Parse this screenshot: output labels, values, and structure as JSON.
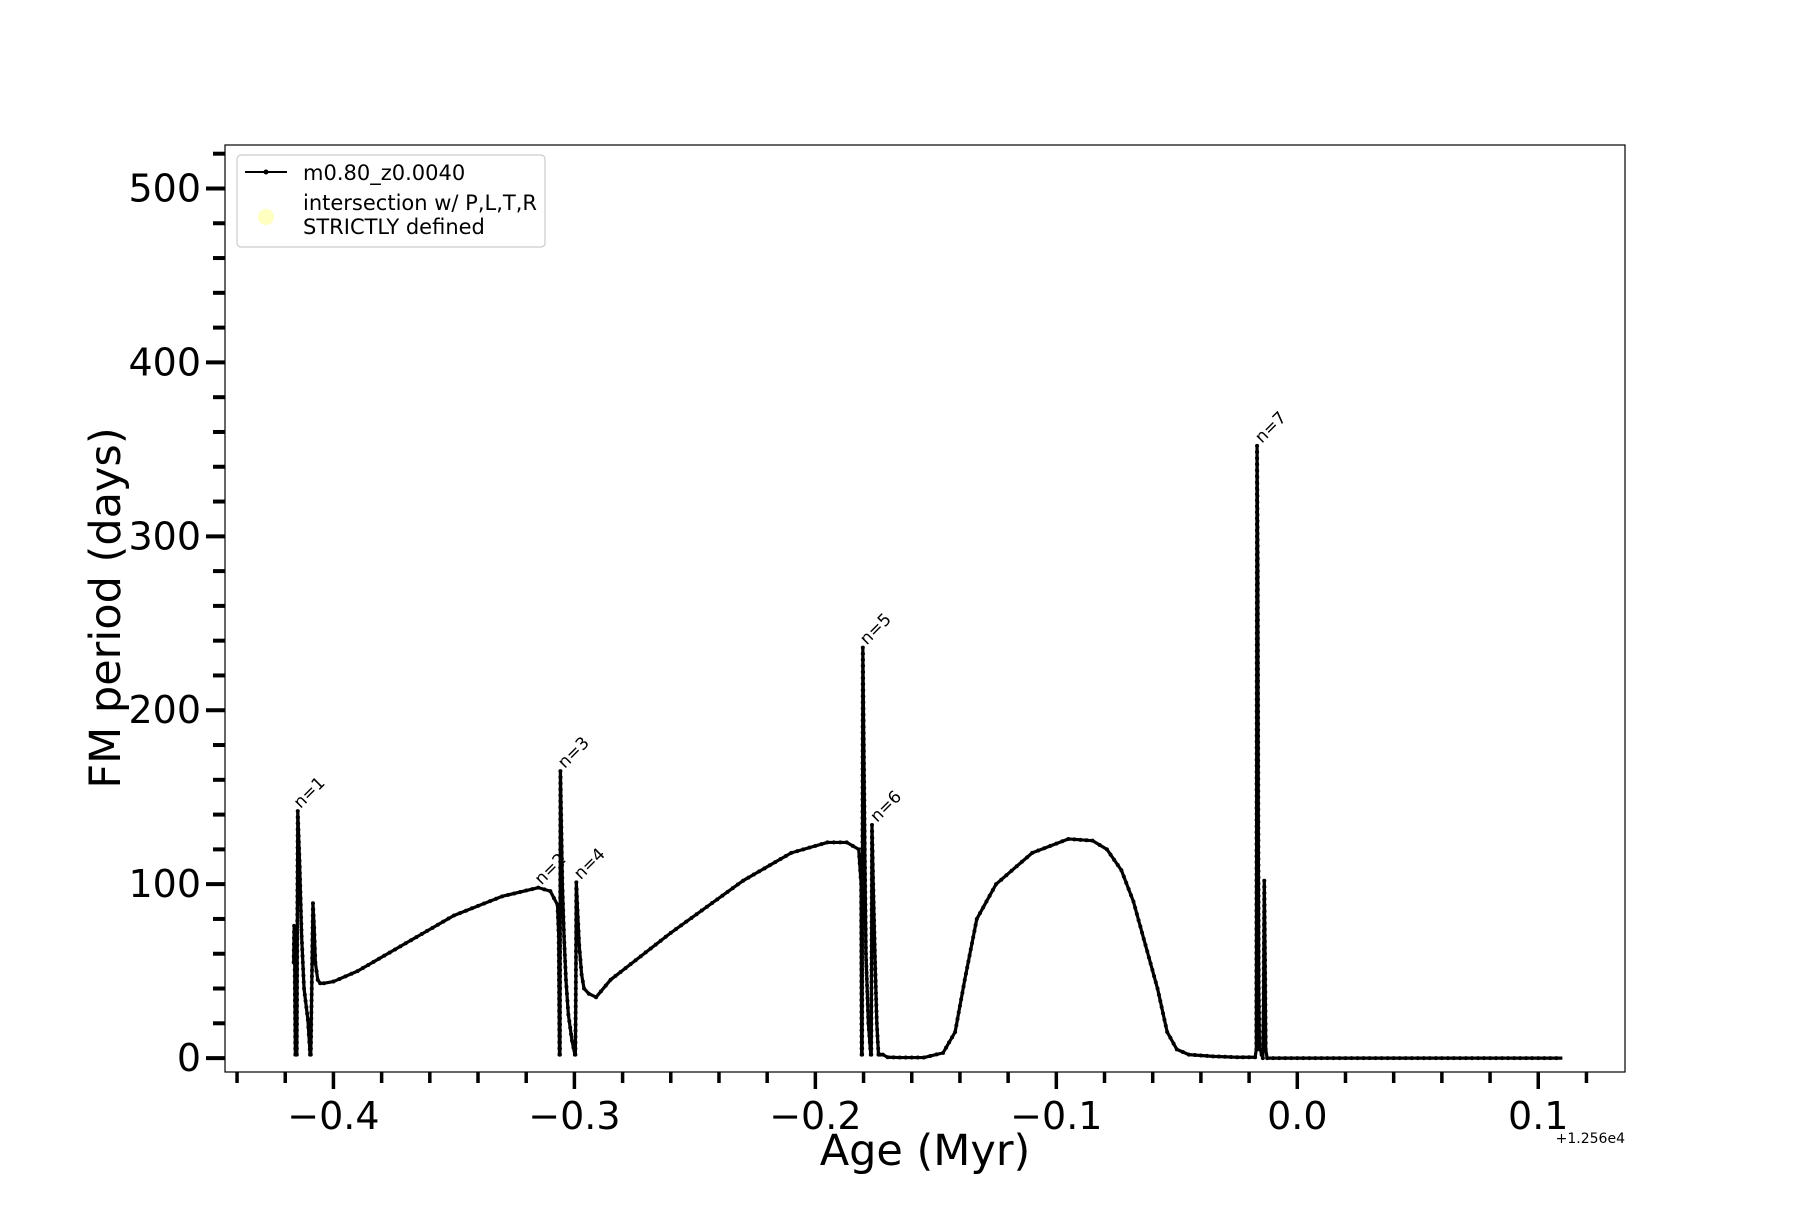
{
  "chart_data": {
    "type": "line",
    "xlabel": "Age (Myr)",
    "ylabel": "FM period (days)",
    "x_offset_label": "+1.256e4",
    "xlim": [
      -0.445,
      0.136
    ],
    "ylim": [
      -8,
      525
    ],
    "x_ticks": [
      -0.4,
      -0.3,
      -0.2,
      -0.1,
      0.0,
      0.1
    ],
    "x_tick_labels": [
      "−0.4",
      "−0.3",
      "−0.2",
      "−0.1",
      "0.0",
      "0.1"
    ],
    "y_ticks": [
      0,
      100,
      200,
      300,
      400,
      500
    ],
    "y_tick_labels": [
      "0",
      "100",
      "200",
      "300",
      "400",
      "500"
    ],
    "grid": false,
    "legend": {
      "placement": "top-left",
      "entries": [
        {
          "label": "m0.80_z0.0040",
          "marker": "line-with-dots",
          "color": "#000000"
        },
        {
          "label": "intersection w/ P,L,T,R\nSTRICTLY defined",
          "marker": "circle",
          "color": "#ffffc0"
        }
      ]
    },
    "series": [
      {
        "name": "m0.80_z0.0040",
        "color": "#000000",
        "x": [
          -0.4165,
          -0.4163,
          -0.4161,
          -0.416,
          -0.4158,
          -0.4152,
          -0.4148,
          -0.414,
          -0.4132,
          -0.4122,
          -0.4106,
          -0.4098,
          -0.4097,
          -0.4094,
          -0.409,
          -0.4085,
          -0.408,
          -0.4075,
          -0.4065,
          -0.4055,
          -0.404,
          -0.4,
          -0.39,
          -0.37,
          -0.35,
          -0.33,
          -0.315,
          -0.31,
          -0.307,
          -0.3065,
          -0.3062,
          -0.306,
          -0.3058,
          -0.3055,
          -0.305,
          -0.3043,
          -0.3035,
          -0.3025,
          -0.301,
          -0.2998,
          -0.2996,
          -0.2994,
          -0.2992,
          -0.2987,
          -0.298,
          -0.297,
          -0.296,
          -0.294,
          -0.291,
          -0.285,
          -0.26,
          -0.23,
          -0.21,
          -0.195,
          -0.187,
          -0.182,
          -0.181,
          -0.1808,
          -0.1806,
          -0.1803,
          -0.1799,
          -0.1795,
          -0.179,
          -0.178,
          -0.177,
          -0.1768,
          -0.1765,
          -0.176,
          -0.1752,
          -0.1745,
          -0.1738,
          -0.1733,
          -0.173,
          -0.172,
          -0.17,
          -0.165,
          -0.155,
          -0.147,
          -0.142,
          -0.138,
          -0.133,
          -0.125,
          -0.11,
          -0.095,
          -0.085,
          -0.079,
          -0.073,
          -0.068,
          -0.063,
          -0.058,
          -0.054,
          -0.05,
          -0.045,
          -0.035,
          -0.025,
          -0.0175,
          -0.017,
          -0.0167,
          -0.0164,
          -0.0162,
          -0.016,
          -0.0157,
          -0.0153,
          -0.0148,
          -0.0143,
          -0.014,
          -0.0137,
          -0.0134,
          -0.0131,
          -0.0125,
          0.0,
          0.05,
          0.11
        ],
        "y": [
          55,
          76,
          65,
          40,
          2,
          2,
          142,
          110,
          70,
          40,
          22,
          5,
          2,
          2,
          40,
          89,
          75,
          55,
          45,
          43,
          43,
          44,
          50,
          66,
          82,
          93,
          98,
          96,
          88,
          70,
          2,
          2,
          165,
          140,
          100,
          70,
          45,
          25,
          10,
          2,
          2,
          40,
          101,
          85,
          65,
          48,
          40,
          37,
          35,
          45,
          72,
          102,
          118,
          124,
          124,
          120,
          100,
          2,
          2,
          236,
          180,
          120,
          60,
          20,
          2,
          2,
          134,
          100,
          55,
          20,
          2,
          2,
          2,
          2,
          0.5,
          0.3,
          0.3,
          3,
          15,
          45,
          80,
          100,
          118,
          126,
          125,
          120,
          108,
          90,
          65,
          40,
          15,
          5,
          2,
          1,
          0.5,
          0.5,
          5,
          352,
          280,
          150,
          40,
          5,
          5,
          2,
          0,
          30,
          102,
          60,
          5,
          0,
          0,
          0,
          0
        ]
      }
    ],
    "annotations": [
      {
        "text": "n=1",
        "x": -0.4145,
        "y": 142
      },
      {
        "text": "n=2",
        "x": -0.3145,
        "y": 98
      },
      {
        "text": "n=3",
        "x": -0.3048,
        "y": 165
      },
      {
        "text": "n=4",
        "x": -0.2982,
        "y": 101
      },
      {
        "text": "n=5",
        "x": -0.1795,
        "y": 236
      },
      {
        "text": "n=6",
        "x": -0.1752,
        "y": 134
      },
      {
        "text": "n=7",
        "x": -0.0155,
        "y": 352
      }
    ]
  }
}
